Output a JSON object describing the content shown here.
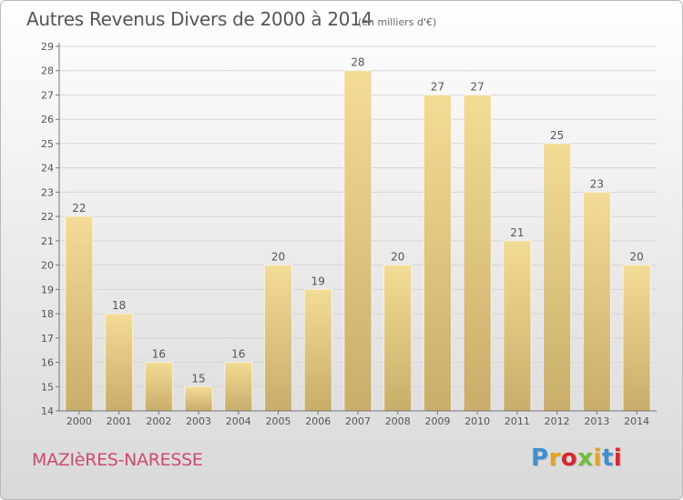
{
  "title": "Autres Revenus Divers de 2000 à 2014",
  "subtitle": "(en milliers d'€)",
  "commune": "MAZIèRES-NARESSE",
  "brand": {
    "letters": [
      "P",
      "r",
      "o",
      "x",
      "i",
      "t",
      "i"
    ],
    "colors": [
      "#3f8fd2",
      "#e8a21a",
      "#d8262f",
      "#6cbf3a",
      "#e8a21a",
      "#3f8fd2",
      "#d8262f"
    ]
  },
  "colors": {
    "bar_top": "#f3dc95",
    "bar_bottom": "#c9ad6a",
    "axis": "#777777",
    "grid": "#d6d6d6",
    "title": "#555555",
    "commune": "#d14a6a"
  },
  "chart_data": {
    "type": "bar",
    "categories": [
      "2000",
      "2001",
      "2002",
      "2003",
      "2004",
      "2005",
      "2006",
      "2007",
      "2008",
      "2009",
      "2010",
      "2011",
      "2012",
      "2013",
      "2014"
    ],
    "values": [
      22,
      18,
      16,
      15,
      16,
      20,
      19,
      28,
      20,
      27,
      27,
      21,
      25,
      23,
      20
    ],
    "ylim": [
      14,
      29
    ],
    "yticks": [
      14,
      15,
      16,
      17,
      18,
      19,
      20,
      21,
      22,
      23,
      24,
      25,
      26,
      27,
      28,
      29
    ],
    "data_labels": true,
    "grid": true
  }
}
